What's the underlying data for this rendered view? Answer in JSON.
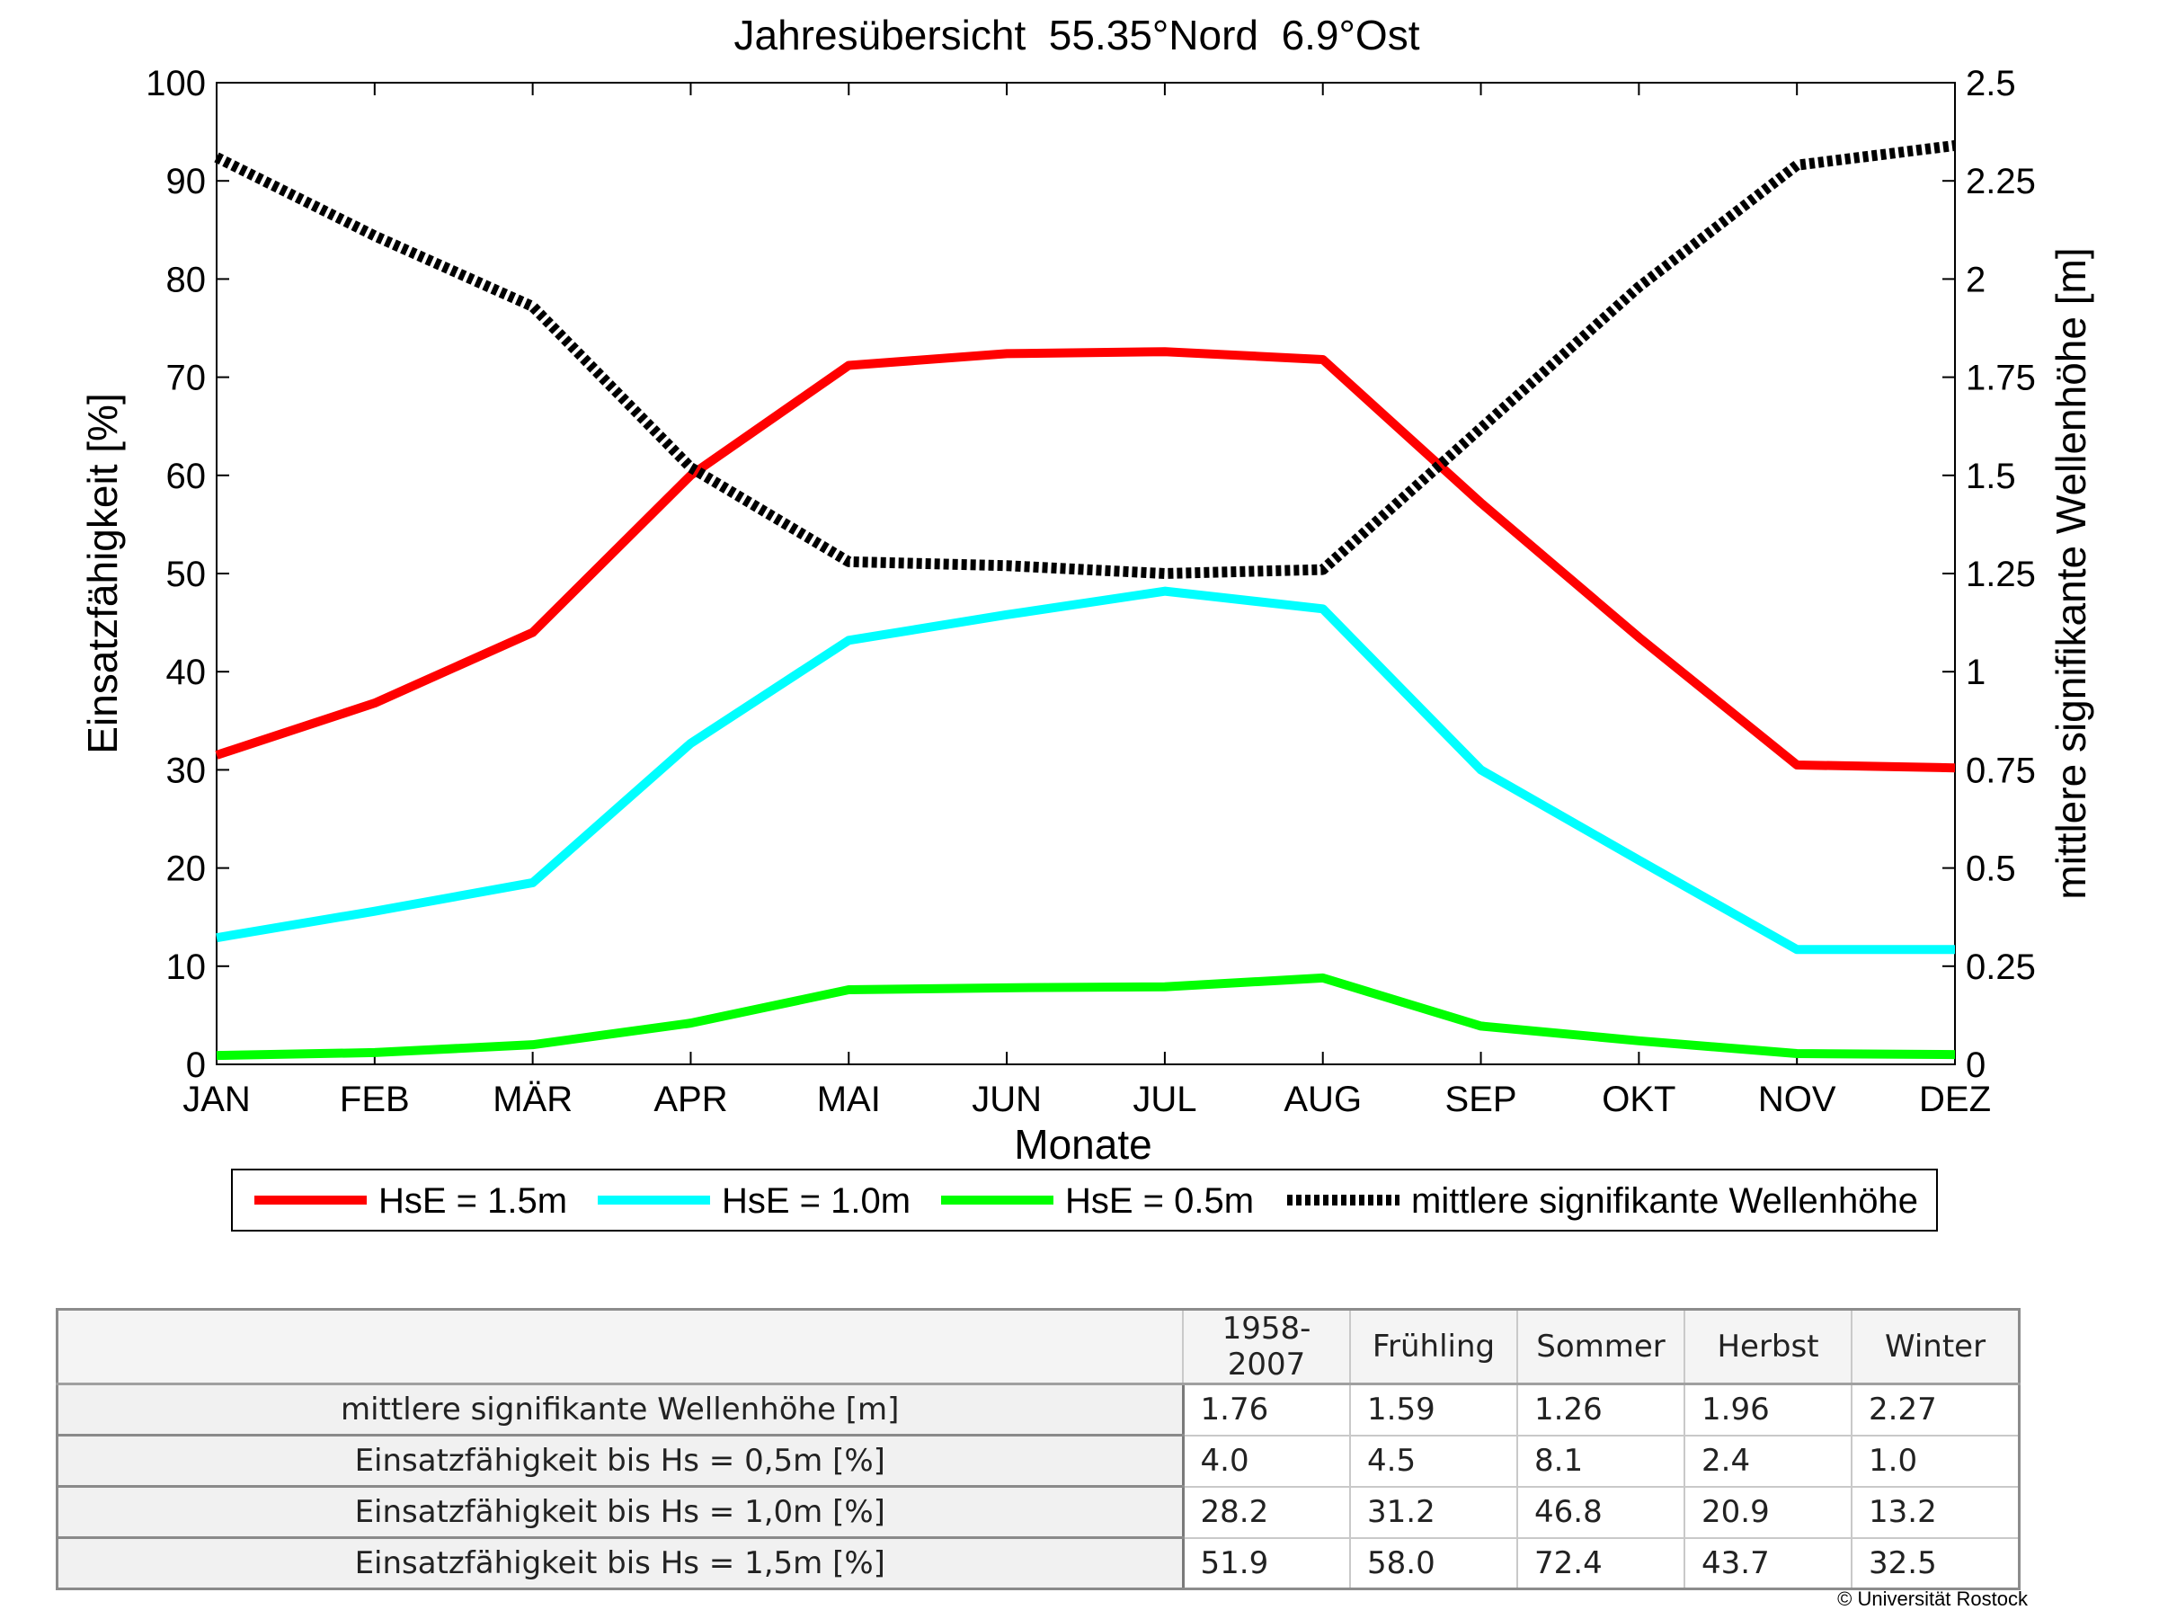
{
  "chart_data": {
    "type": "line",
    "title": "Jahresübersicht  55.35°Nord  6.9°Ost",
    "xlabel": "Monate",
    "ylabel_left": "Einsatzfähigkeit [%]",
    "ylabel_right": "mittlere signifikante Wellenhöhe [m]",
    "categories": [
      "JAN",
      "FEB",
      "MÄR",
      "APR",
      "MAI",
      "JUN",
      "JUL",
      "AUG",
      "SEP",
      "OKT",
      "NOV",
      "DEZ"
    ],
    "ylim_left": [
      0,
      100
    ],
    "ylim_right": [
      0,
      2.5
    ],
    "yticks_left": [
      "0",
      "10",
      "20",
      "30",
      "40",
      "50",
      "60",
      "70",
      "80",
      "90",
      "100"
    ],
    "yticks_right": [
      "0",
      "0.25",
      "0.5",
      "0.75",
      "1",
      "1.25",
      "1.5",
      "1.75",
      "2",
      "2.25",
      "2.5"
    ],
    "grid": false,
    "legend_position": "bottom",
    "series": [
      {
        "name": "HsE = 1.5m",
        "axis": "left",
        "color": "#ff0000",
        "style": "solid",
        "values": [
          31.5,
          36.8,
          44,
          60,
          71.2,
          72.4,
          72.6,
          71.8,
          57.2,
          43.5,
          30.5,
          30.2
        ]
      },
      {
        "name": "HsE = 1.0m",
        "axis": "left",
        "color": "#00ffff",
        "style": "solid",
        "values": [
          12.9,
          15.6,
          18.5,
          32.7,
          43.2,
          45.8,
          48.2,
          46.4,
          30,
          20.8,
          11.7,
          11.7
        ]
      },
      {
        "name": "HsE = 0.5m",
        "axis": "left",
        "color": "#00ff00",
        "style": "solid",
        "values": [
          0.9,
          1.2,
          2,
          4.2,
          7.6,
          7.8,
          7.9,
          8.8,
          3.9,
          2.4,
          1.1,
          1
        ]
      },
      {
        "name": "mittlere signifikante Wellenhöhe",
        "axis": "right",
        "color": "#000000",
        "style": "dotted",
        "values": [
          2.31,
          2.11,
          1.93,
          1.52,
          1.28,
          1.27,
          1.25,
          1.26,
          1.62,
          1.98,
          2.29,
          2.34
        ]
      }
    ]
  },
  "summary_table": {
    "columns": [
      "1958-2007",
      "Frühling",
      "Sommer",
      "Herbst",
      "Winter"
    ],
    "rows": [
      {
        "label": "mittlere signifikante Wellenhöhe [m]",
        "values": [
          "1.76",
          "1.59",
          "1.26",
          "1.96",
          "2.27"
        ]
      },
      {
        "label": "Einsatzfähigkeit bis Hs = 0,5m [%]",
        "values": [
          "4.0",
          "4.5",
          "8.1",
          "2.4",
          "1.0"
        ]
      },
      {
        "label": "Einsatzfähigkeit bis Hs = 1,0m [%]",
        "values": [
          "28.2",
          "31.2",
          "46.8",
          "20.9",
          "13.2"
        ]
      },
      {
        "label": "Einsatzfähigkeit bis Hs = 1,5m [%]",
        "values": [
          "51.9",
          "58.0",
          "72.4",
          "43.7",
          "32.5"
        ]
      }
    ]
  },
  "copyright": "© Universität Rostock"
}
